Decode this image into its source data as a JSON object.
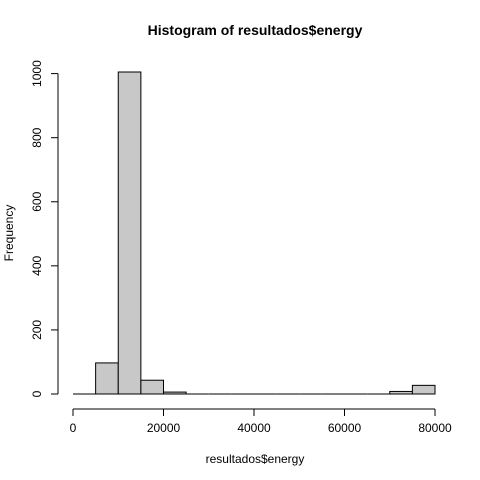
{
  "chart_data": {
    "type": "bar",
    "title": "Histogram of resultados$energy",
    "xlabel": "resultados$energy",
    "ylabel": "Frequency",
    "bin_width": 5000,
    "bins": [
      {
        "start": 0,
        "end": 5000,
        "count": 0
      },
      {
        "start": 5000,
        "end": 10000,
        "count": 97
      },
      {
        "start": 10000,
        "end": 15000,
        "count": 1005
      },
      {
        "start": 15000,
        "end": 20000,
        "count": 43
      },
      {
        "start": 20000,
        "end": 25000,
        "count": 6
      },
      {
        "start": 25000,
        "end": 30000,
        "count": 0
      },
      {
        "start": 30000,
        "end": 35000,
        "count": 0
      },
      {
        "start": 35000,
        "end": 40000,
        "count": 0
      },
      {
        "start": 40000,
        "end": 45000,
        "count": 0
      },
      {
        "start": 45000,
        "end": 50000,
        "count": 0
      },
      {
        "start": 50000,
        "end": 55000,
        "count": 0
      },
      {
        "start": 55000,
        "end": 60000,
        "count": 0
      },
      {
        "start": 60000,
        "end": 65000,
        "count": 0
      },
      {
        "start": 65000,
        "end": 70000,
        "count": 0
      },
      {
        "start": 70000,
        "end": 75000,
        "count": 8
      },
      {
        "start": 75000,
        "end": 80000,
        "count": 27
      }
    ],
    "xlim": [
      0,
      80000
    ],
    "ylim": [
      0,
      1005
    ],
    "x_ticks": [
      0,
      20000,
      40000,
      60000,
      80000
    ],
    "x_tick_labels": [
      "0",
      "20000",
      "40000",
      "60000",
      "80000"
    ],
    "y_ticks": [
      0,
      200,
      400,
      600,
      800,
      1000
    ],
    "y_tick_labels": [
      "0",
      "200",
      "400",
      "600",
      "800",
      "1000"
    ],
    "bar_fill": "#c8c8c8",
    "bar_stroke": "#000000",
    "grid": false,
    "legend": "none"
  }
}
